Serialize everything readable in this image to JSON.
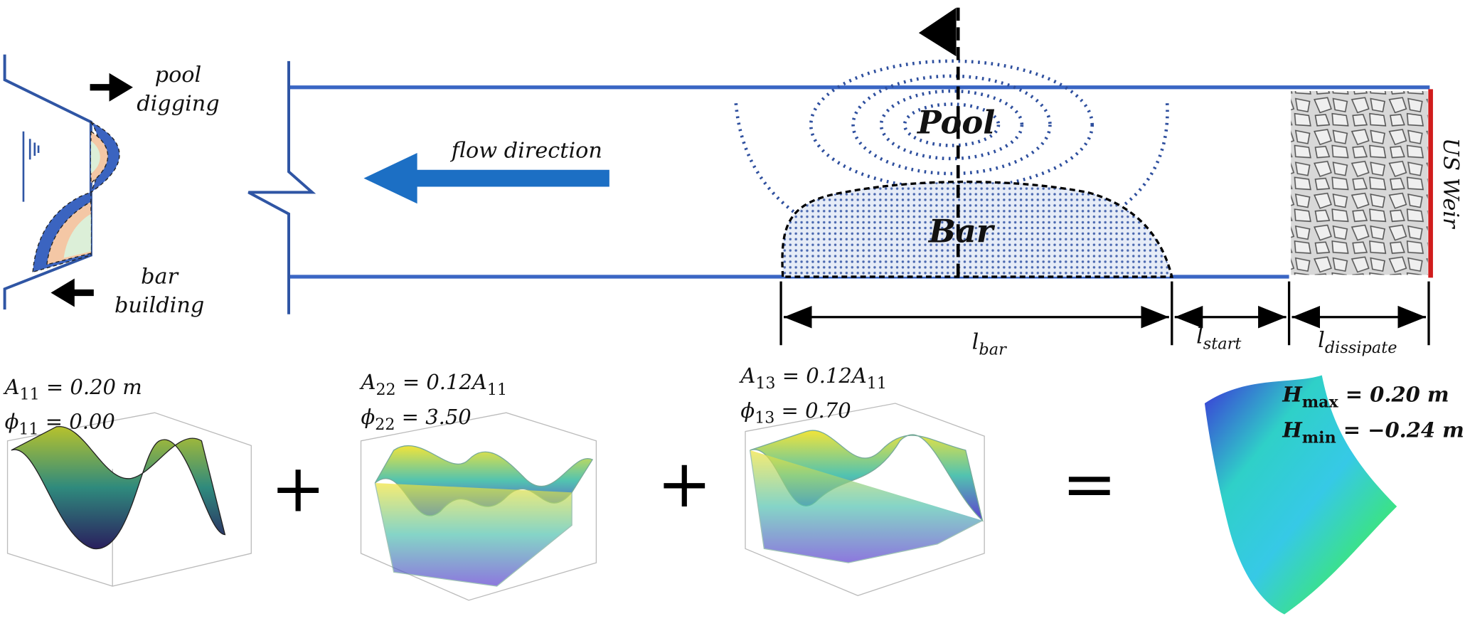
{
  "cross_section": {
    "top_label": [
      "pool",
      "digging"
    ],
    "bottom_label": [
      "bar",
      "building"
    ]
  },
  "channel": {
    "flow_label": "flow direction",
    "pool_label": "Pool",
    "bar_label": "Bar",
    "weir_label": "US Weir",
    "dimensions": [
      {
        "symbol": "l",
        "subscript": "bar"
      },
      {
        "symbol": "l",
        "subscript": "start"
      },
      {
        "symbol": "l",
        "subscript": "dissipate"
      }
    ]
  },
  "modes": [
    {
      "lines": [
        [
          {
            "text": "A"
          },
          {
            "subscript": "11"
          },
          {
            "text": " = 0.20 "
          },
          {
            "text": "m"
          }
        ],
        [
          {
            "text": "ϕ"
          },
          {
            "subscript": "11"
          },
          {
            "text": " = 0.00"
          }
        ]
      ]
    },
    {
      "lines": [
        [
          {
            "text": "A"
          },
          {
            "subscript": "22"
          },
          {
            "text": " = 0.12A"
          },
          {
            "subscript": "11"
          }
        ],
        [
          {
            "text": "ϕ"
          },
          {
            "subscript": "22"
          },
          {
            "text": " = 3.50"
          }
        ]
      ]
    },
    {
      "lines": [
        [
          {
            "text": "A"
          },
          {
            "subscript": "13"
          },
          {
            "text": " = 0.12A"
          },
          {
            "subscript": "11"
          }
        ],
        [
          {
            "text": "ϕ"
          },
          {
            "subscript": "13"
          },
          {
            "text": " = 0.70"
          }
        ]
      ]
    }
  ],
  "operators": [
    "+",
    "+",
    "="
  ],
  "result": {
    "lines": [
      [
        {
          "text": "H"
        },
        {
          "subscript": "max"
        },
        {
          "text": " = 0.20 m"
        }
      ],
      [
        {
          "text": "H"
        },
        {
          "subscript": "min"
        },
        {
          "text": " = −0.24 m"
        }
      ]
    ]
  }
}
